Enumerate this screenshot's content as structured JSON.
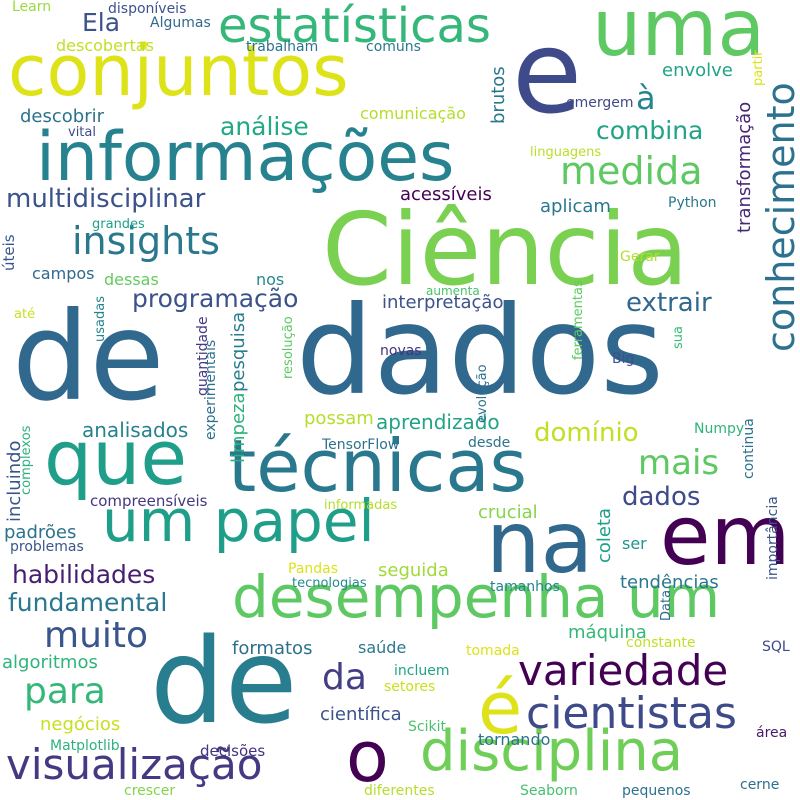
{
  "words": [
    {
      "text": "de",
      "color": "#31688e"
    },
    {
      "text": "dados",
      "color": "#31688e"
    },
    {
      "text": "Ciência",
      "color": "#7ad151"
    },
    {
      "text": "informações",
      "color": "#26828e"
    },
    {
      "text": "conjuntos",
      "color": "#dde318"
    },
    {
      "text": "uma",
      "color": "#5ec962"
    },
    {
      "text": "e",
      "color": "#3e4a89"
    },
    {
      "text": "estatísticas",
      "color": "#35b779"
    },
    {
      "text": "que",
      "color": "#1f9e89"
    },
    {
      "text": "técnicas",
      "color": "#2a788e"
    },
    {
      "text": "na",
      "color": "#31688e"
    },
    {
      "text": "em",
      "color": "#440154"
    },
    {
      "text": "um papel",
      "color": "#1f9e89"
    },
    {
      "text": "desempenha um",
      "color": "#5ec962"
    },
    {
      "text": "de",
      "color": "#287d8e"
    },
    {
      "text": "é",
      "color": "#dde318"
    },
    {
      "text": "disciplina",
      "color": "#6ece58"
    },
    {
      "text": "variedade",
      "color": "#440154"
    },
    {
      "text": "cientistas",
      "color": "#3e4a89"
    },
    {
      "text": "o",
      "color": "#440154"
    },
    {
      "text": "visualização",
      "color": "#443a83"
    },
    {
      "text": "conhecimento",
      "color": "#2c728e"
    },
    {
      "text": "insights",
      "color": "#2a788e"
    },
    {
      "text": "medida",
      "color": "#5ec962"
    },
    {
      "text": "muito",
      "color": "#39568c"
    },
    {
      "text": "para",
      "color": "#35b779"
    },
    {
      "text": "da",
      "color": "#433e85"
    },
    {
      "text": "mais",
      "color": "#5ec962"
    },
    {
      "text": "habilidades",
      "color": "#481f70"
    },
    {
      "text": "fundamental",
      "color": "#2a788e"
    },
    {
      "text": "multidisciplinar",
      "color": "#3b528b"
    },
    {
      "text": "análise",
      "color": "#22a884"
    },
    {
      "text": "combina",
      "color": "#20a386"
    },
    {
      "text": "programação",
      "color": "#3b528b"
    },
    {
      "text": "extrair",
      "color": "#31688e"
    },
    {
      "text": "domínio",
      "color": "#c2df23"
    },
    {
      "text": "dados",
      "color": "#3e4a89"
    },
    {
      "text": "à",
      "color": "#25858e"
    },
    {
      "text": "Ela",
      "color": "#3b528b"
    },
    {
      "text": "analisados",
      "color": "#26828e"
    },
    {
      "text": "aprendizado",
      "color": "#20a386"
    },
    {
      "text": "envolve",
      "color": "#20a486"
    },
    {
      "text": "transformação",
      "color": "#482878"
    },
    {
      "text": "brutos",
      "color": "#2a788e"
    },
    {
      "text": "descobrir",
      "color": "#2c728e"
    },
    {
      "text": "descobertas",
      "color": "#c2df23"
    },
    {
      "text": "comunicação",
      "color": "#b5de2b"
    },
    {
      "text": "acessíveis",
      "color": "#440154"
    },
    {
      "text": "aplicam",
      "color": "#2a788e"
    },
    {
      "text": "interpretação",
      "color": "#3b528b"
    },
    {
      "text": "pesquisa",
      "color": "#287d8e"
    },
    {
      "text": "limpeza",
      "color": "#2db27d"
    },
    {
      "text": "campos",
      "color": "#31688e"
    },
    {
      "text": "nos",
      "color": "#23898e"
    },
    {
      "text": "dessas",
      "color": "#63cb5f"
    },
    {
      "text": "possam",
      "color": "#b5de2b"
    },
    {
      "text": "incluindo",
      "color": "#39568c"
    },
    {
      "text": "padrões",
      "color": "#2c728e"
    },
    {
      "text": "crucial",
      "color": "#86d549"
    },
    {
      "text": "seguida",
      "color": "#a0da39"
    },
    {
      "text": "coleta",
      "color": "#1fa088"
    },
    {
      "text": "ser",
      "color": "#1f968b"
    },
    {
      "text": "tendências",
      "color": "#2a788e"
    },
    {
      "text": "máquina",
      "color": "#35b779"
    },
    {
      "text": "algoritmos",
      "color": "#2fb47c"
    },
    {
      "text": "formatos",
      "color": "#2d708e"
    },
    {
      "text": "saúde",
      "color": "#2a788e"
    },
    {
      "text": "científica",
      "color": "#3b528b"
    },
    {
      "text": "negócios",
      "color": "#c8e020"
    },
    {
      "text": "tornando",
      "color": "#2c728e"
    },
    {
      "text": "decisões",
      "color": "#46327e"
    },
    {
      "text": "Matplotlib",
      "color": "#2db27d"
    },
    {
      "text": "compreensíveis",
      "color": "#453781"
    },
    {
      "text": "informadas",
      "color": "#b5de2b"
    },
    {
      "text": "tecnologias",
      "color": "#238a8d"
    },
    {
      "text": "Pandas",
      "color": "#dde318"
    },
    {
      "text": "tamanhos",
      "color": "#25858e"
    },
    {
      "text": "pequenos",
      "color": "#2c728e"
    },
    {
      "text": "diferentes",
      "color": "#b5de2b"
    },
    {
      "text": "crescer",
      "color": "#84d44b"
    },
    {
      "text": "Seaborn",
      "color": "#46c06f"
    },
    {
      "text": "cerne",
      "color": "#2d708e"
    },
    {
      "text": "Scikit",
      "color": "#4ac16d"
    },
    {
      "text": "Learn",
      "color": "#9bd93c"
    },
    {
      "text": "área",
      "color": "#481a6c"
    },
    {
      "text": "SQL",
      "color": "#3e4a89"
    },
    {
      "text": "Numpy",
      "color": "#2fb47c"
    },
    {
      "text": "TensorFlow",
      "color": "#2d708e"
    },
    {
      "text": "Python",
      "color": "#2a788e"
    },
    {
      "text": "Big",
      "color": "#3b528b"
    },
    {
      "text": "Data",
      "color": "#31688e"
    },
    {
      "text": "Gerar",
      "color": "#b5de2b"
    },
    {
      "text": "constante",
      "color": "#c2df23"
    },
    {
      "text": "continua",
      "color": "#2c728e"
    },
    {
      "text": "importância",
      "color": "#3b528b"
    },
    {
      "text": "vital",
      "color": "#3e4a89"
    },
    {
      "text": "grandes",
      "color": "#1fa088"
    },
    {
      "text": "úteis",
      "color": "#39568c"
    },
    {
      "text": "até",
      "color": "#c8e020"
    },
    {
      "text": "usadas",
      "color": "#25858e"
    },
    {
      "text": "quantidade",
      "color": "#443983"
    },
    {
      "text": "experimentais",
      "color": "#2c728e"
    },
    {
      "text": "resolução",
      "color": "#5ec962"
    },
    {
      "text": "evolução",
      "color": "#2c728e"
    },
    {
      "text": "ferramentas",
      "color": "#5ec962"
    },
    {
      "text": "sua",
      "color": "#38b977"
    },
    {
      "text": "partir",
      "color": "#dde318"
    },
    {
      "text": "trabalham",
      "color": "#2c728e"
    },
    {
      "text": "comuns",
      "color": "#2a788e"
    },
    {
      "text": "Algumas",
      "color": "#31688e"
    },
    {
      "text": "disponíveis",
      "color": "#3b528b"
    },
    {
      "text": "emergem",
      "color": "#3e4a89"
    },
    {
      "text": "linguagens",
      "color": "#b8de29"
    },
    {
      "text": "novas",
      "color": "#46327e"
    },
    {
      "text": "desde",
      "color": "#2c728e"
    },
    {
      "text": "incluem",
      "color": "#20a486"
    },
    {
      "text": "setores",
      "color": "#c8e020"
    },
    {
      "text": "tomada",
      "color": "#dde318"
    },
    {
      "text": "problemas",
      "color": "#39568c"
    },
    {
      "text": "complexos",
      "color": "#2db27d"
    },
    {
      "text": "aumenta",
      "color": "#4ac16d"
    }
  ]
}
